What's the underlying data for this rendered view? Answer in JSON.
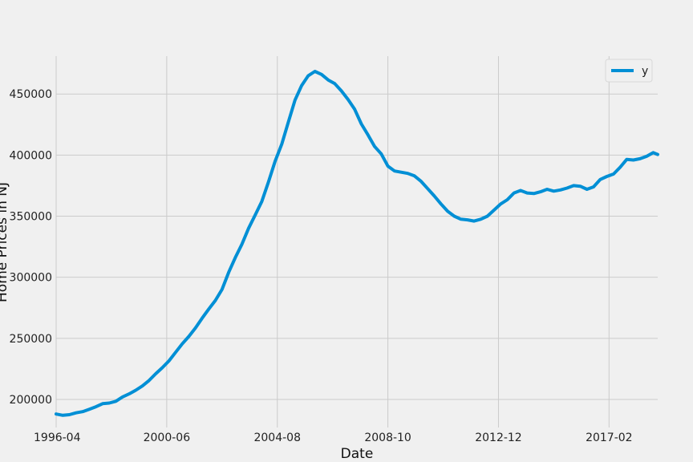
{
  "chart_data": {
    "type": "line",
    "xlabel": "Date",
    "ylabel": "Home Prices in NJ",
    "x_ticks": [
      {
        "label": "1996-04",
        "date": "1996-04"
      },
      {
        "label": "2000-06",
        "date": "2000-06"
      },
      {
        "label": "2004-08",
        "date": "2004-08"
      },
      {
        "label": "2008-10",
        "date": "2008-10"
      },
      {
        "label": "2012-12",
        "date": "2012-12"
      },
      {
        "label": "2017-02",
        "date": "2017-02"
      }
    ],
    "xlim": [
      "1996-04",
      "2018-12"
    ],
    "y_ticks": [
      200000,
      250000,
      300000,
      350000,
      400000,
      450000
    ],
    "ylim": [
      177000,
      481000
    ],
    "grid": true,
    "legend": {
      "placement": "top-right",
      "entries": [
        "y"
      ]
    },
    "series": [
      {
        "name": "y",
        "color": "#008fd5",
        "x": [
          "1996-04",
          "1996-07",
          "1996-10",
          "1997-01",
          "1997-04",
          "1997-07",
          "1997-10",
          "1998-01",
          "1998-04",
          "1998-07",
          "1998-10",
          "1999-01",
          "1999-04",
          "1999-07",
          "1999-10",
          "2000-01",
          "2000-04",
          "2000-07",
          "2000-10",
          "2001-01",
          "2001-04",
          "2001-07",
          "2001-10",
          "2002-01",
          "2002-04",
          "2002-07",
          "2002-10",
          "2003-01",
          "2003-04",
          "2003-07",
          "2003-10",
          "2004-01",
          "2004-04",
          "2004-07",
          "2004-10",
          "2005-01",
          "2005-04",
          "2005-07",
          "2005-10",
          "2006-01",
          "2006-04",
          "2006-07",
          "2006-10",
          "2007-01",
          "2007-04",
          "2007-07",
          "2007-10",
          "2008-01",
          "2008-04",
          "2008-07",
          "2008-10",
          "2009-01",
          "2009-04",
          "2009-07",
          "2009-10",
          "2010-01",
          "2010-04",
          "2010-07",
          "2010-10",
          "2011-01",
          "2011-04",
          "2011-07",
          "2011-10",
          "2012-01",
          "2012-04",
          "2012-07",
          "2012-10",
          "2013-01",
          "2013-04",
          "2013-07",
          "2013-10",
          "2014-01",
          "2014-04",
          "2014-07",
          "2014-10",
          "2015-01",
          "2015-04",
          "2015-07",
          "2015-10",
          "2016-01",
          "2016-04",
          "2016-07",
          "2016-10",
          "2017-01",
          "2017-04",
          "2017-07",
          "2017-10",
          "2018-01",
          "2018-04",
          "2018-07",
          "2018-10",
          "2018-12"
        ],
        "values": [
          188000,
          187000,
          187500,
          189000,
          190000,
          192000,
          194000,
          196500,
          197000,
          198500,
          202000,
          204500,
          207500,
          211000,
          215500,
          221000,
          226000,
          231500,
          238500,
          245500,
          251500,
          258500,
          266500,
          274000,
          281000,
          290000,
          304000,
          316000,
          327000,
          340000,
          351000,
          362000,
          378000,
          395000,
          409000,
          427000,
          445000,
          457000,
          465000,
          468500,
          466000,
          461500,
          458500,
          452500,
          445500,
          437500,
          425500,
          416500,
          407000,
          401000,
          391000,
          387000,
          386000,
          385000,
          383000,
          378500,
          372500,
          366500,
          360000,
          354000,
          350000,
          347500,
          347000,
          346000,
          347500,
          350000,
          355000,
          360000,
          363500,
          369000,
          371000,
          369000,
          368500,
          370000,
          372000,
          370500,
          371500,
          373000,
          375000,
          374500,
          372000,
          374000,
          380000,
          382500,
          384500,
          390000,
          396500,
          396000,
          397000,
          399000,
          402000,
          400500
        ],
        "end": "2018-12"
      }
    ]
  }
}
